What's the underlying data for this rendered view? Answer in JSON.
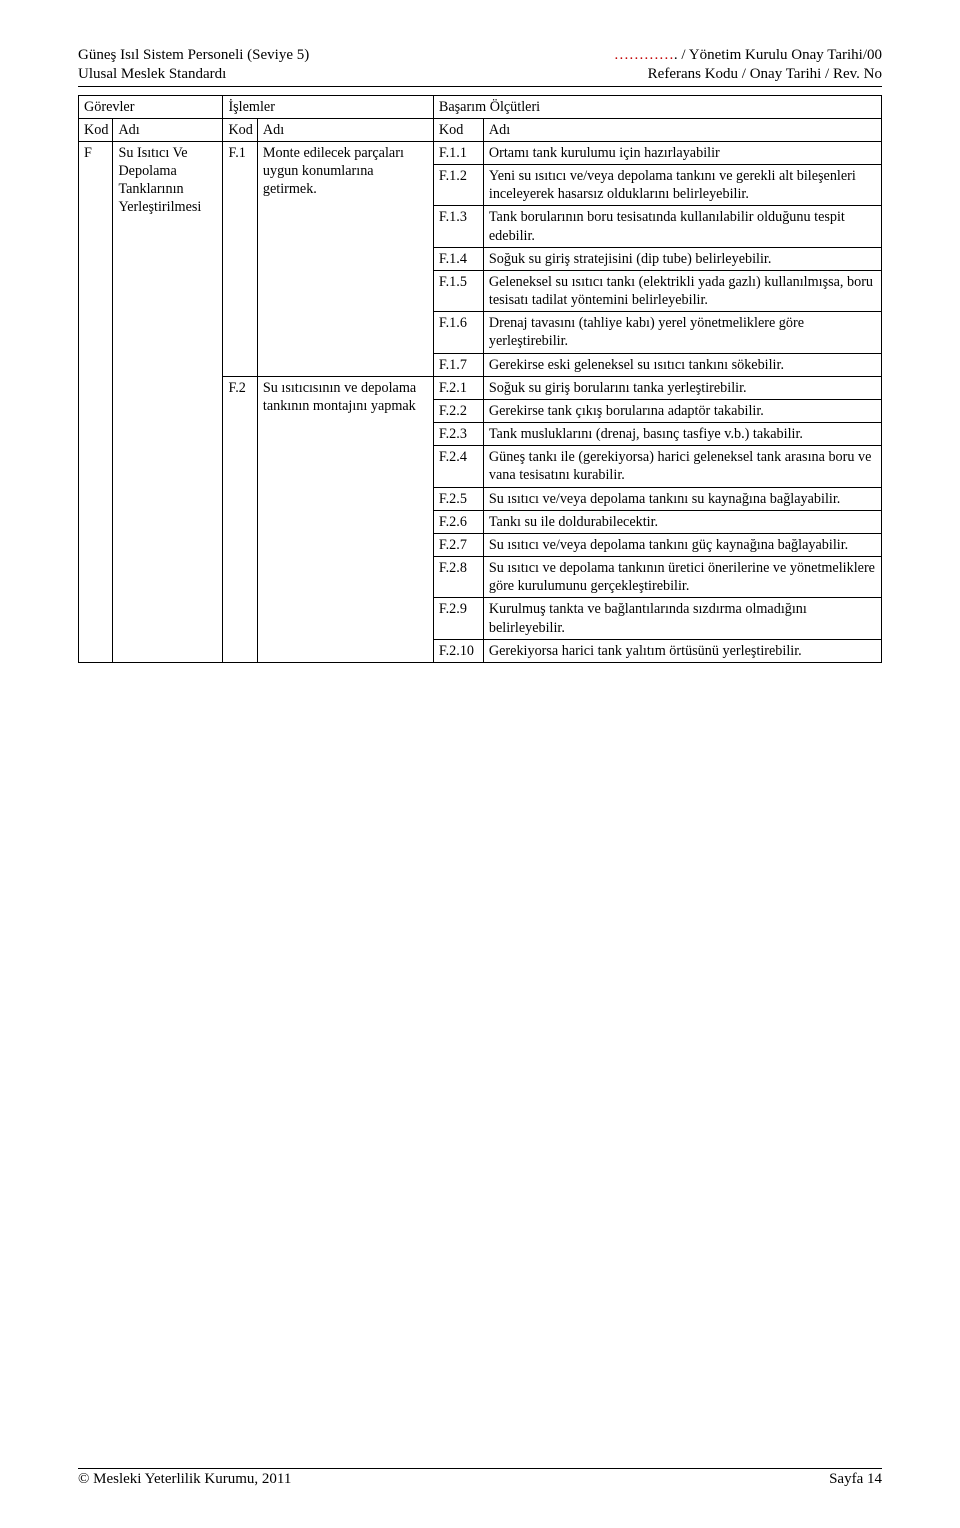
{
  "header": {
    "left_line1": "Güneş Isıl Sistem Personeli (Seviye 5)",
    "left_line2": "Ulusal Meslek Standardı",
    "right_line1_dots": "…………",
    "right_line1_text": ". / Yönetim Kurulu Onay Tarihi/00",
    "right_line2": "Referans Kodu / Onay Tarihi / Rev. No"
  },
  "table": {
    "headers": {
      "gorevler": "Görevler",
      "islemler": "İşlemler",
      "basarim": "Başarım Ölçütleri",
      "kod": "Kod",
      "adi": "Adı"
    },
    "gorev": {
      "kod": "F",
      "adi": "Su Isıtıcı Ve Depolama Tanklarının Yerleştirilmesi"
    },
    "islemler": [
      {
        "kod": "F.1",
        "adi": "Monte edilecek parçaları uygun konumlarına getirmek."
      },
      {
        "kod": "F.2",
        "adi": "Su ısıtıcısının ve depolama tankının montajını yapmak"
      }
    ],
    "olcutler": {
      "F1": [
        {
          "kod": "F.1.1",
          "adi": "Ortamı tank kurulumu için hazırlayabilir"
        },
        {
          "kod": "F.1.2",
          "adi": "Yeni su ısıtıcı ve/veya depolama tankını ve gerekli alt bileşenleri inceleyerek hasarsız olduklarını belirleyebilir."
        },
        {
          "kod": "F.1.3",
          "adi": "Tank borularının boru tesisatında kullanılabilir olduğunu tespit edebilir."
        },
        {
          "kod": "F.1.4",
          "adi": "Soğuk su giriş stratejisini (dip tube) belirleyebilir."
        },
        {
          "kod": "F.1.5",
          "adi": "Geleneksel su ısıtıcı tankı (elektrikli yada gazlı) kullanılmışsa, boru tesisatı tadilat yöntemini belirleyebilir."
        },
        {
          "kod": "F.1.6",
          "adi": "Drenaj tavasını (tahliye kabı) yerel yönetmeliklere göre yerleştirebilir."
        },
        {
          "kod": "F.1.7",
          "adi": "Gerekirse eski geleneksel su ısıtıcı tankını sökebilir."
        }
      ],
      "F2": [
        {
          "kod": "F.2.1",
          "adi": "Soğuk su giriş borularını tanka yerleştirebilir."
        },
        {
          "kod": "F.2.2",
          "adi": "Gerekirse tank çıkış borularına adaptör takabilir."
        },
        {
          "kod": "F.2.3",
          "adi": "Tank musluklarını (drenaj, basınç tasfiye v.b.) takabilir."
        },
        {
          "kod": "F.2.4",
          "adi": "Güneş tankı ile (gerekiyorsa)  harici geleneksel tank arasına boru ve vana tesisatını kurabilir."
        },
        {
          "kod": "F.2.5",
          "adi": "Su ısıtıcı ve/veya depolama tankını su kaynağına bağlayabilir."
        },
        {
          "kod": "F.2.6",
          "adi": "Tankı su ile doldurabilecektir."
        },
        {
          "kod": "F.2.7",
          "adi": "Su ısıtıcı ve/veya depolama tankını güç kaynağına bağlayabilir."
        },
        {
          "kod": "F.2.8",
          "adi": "Su ısıtıcı ve depolama tankının üretici önerilerine ve yönetmeliklere göre kurulumunu gerçekleştirebilir."
        },
        {
          "kod": "F.2.9",
          "adi": "Kurulmuş tankta ve bağlantılarında sızdırma olmadığını belirleyebilir."
        },
        {
          "kod": "F.2.10",
          "adi": "Gerekiyorsa harici tank yalıtım örtüsünü yerleştirebilir."
        }
      ]
    }
  },
  "footer": {
    "left": "© Mesleki Yeterlilik Kurumu, 2011",
    "right": "Sayfa 14"
  }
}
